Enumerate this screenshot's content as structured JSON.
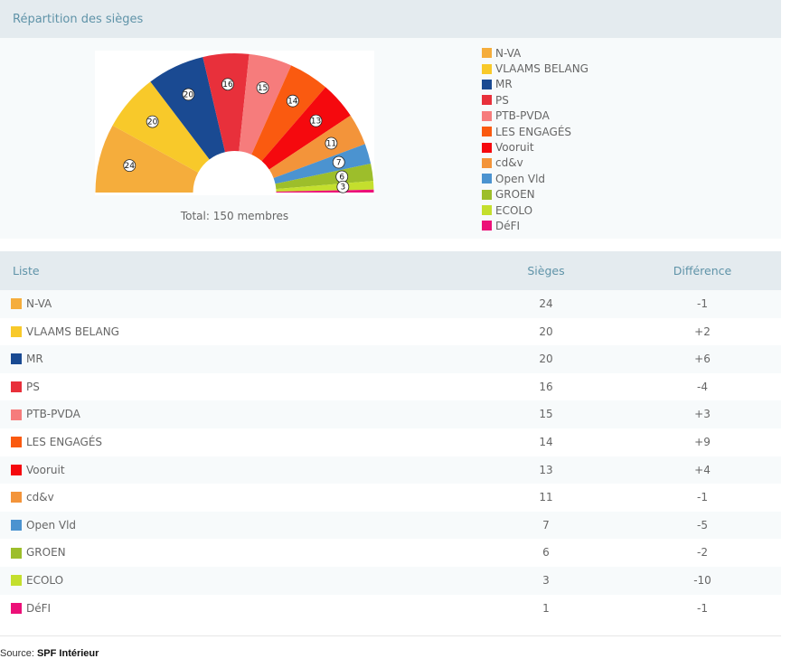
{
  "header": {
    "title": "Répartition des sièges"
  },
  "chart_data": {
    "type": "pie",
    "subtype": "parliament-hemicycle",
    "total_label": "Total: 150 membres",
    "categories": [
      "N-VA",
      "VLAAMS BELANG",
      "MR",
      "PS",
      "PTB-PVDA",
      "LES ENGAGÉS",
      "Vooruit",
      "cd&v",
      "Open Vld",
      "GROEN",
      "ECOLO",
      "DéFI"
    ],
    "values": [
      24,
      20,
      20,
      16,
      15,
      14,
      13,
      11,
      7,
      6,
      3,
      1
    ],
    "data_labels": [
      "24",
      "20",
      "20",
      "16",
      "15",
      "14",
      "13",
      "11",
      "7",
      "6",
      "3",
      ""
    ],
    "colors": [
      "#f5ad3c",
      "#f8c92a",
      "#1a4a92",
      "#e8303b",
      "#f67c7c",
      "#fa5a10",
      "#f5090e",
      "#f3943a",
      "#4b93d0",
      "#9dbe2b",
      "#c4df2d",
      "#ec1078"
    ],
    "legend_position": "right"
  },
  "table": {
    "headers": {
      "liste": "Liste",
      "sieges": "Sièges",
      "difference": "Différence"
    },
    "rows": [
      {
        "name": "N-VA",
        "seats": "24",
        "diff": "-1"
      },
      {
        "name": "VLAAMS BELANG",
        "seats": "20",
        "diff": "+2"
      },
      {
        "name": "MR",
        "seats": "20",
        "diff": "+6"
      },
      {
        "name": "PS",
        "seats": "16",
        "diff": "-4"
      },
      {
        "name": "PTB-PVDA",
        "seats": "15",
        "diff": "+3"
      },
      {
        "name": "LES ENGAGÉS",
        "seats": "14",
        "diff": "+9"
      },
      {
        "name": "Vooruit",
        "seats": "13",
        "diff": "+4"
      },
      {
        "name": "cd&v",
        "seats": "11",
        "diff": "-1"
      },
      {
        "name": "Open Vld",
        "seats": "7",
        "diff": "-5"
      },
      {
        "name": "GROEN",
        "seats": "6",
        "diff": "-2"
      },
      {
        "name": "ECOLO",
        "seats": "3",
        "diff": "-10"
      },
      {
        "name": "DéFI",
        "seats": "1",
        "diff": "-1"
      }
    ]
  },
  "source": {
    "label": "Source: ",
    "name": "SPF Intérieur"
  }
}
